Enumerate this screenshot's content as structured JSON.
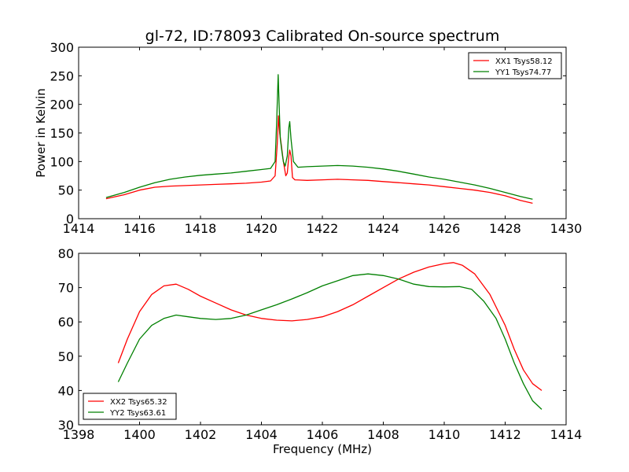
{
  "title": "gl-72, ID:78093 Calibrated On-source spectrum",
  "chart_data": [
    {
      "type": "line",
      "ylabel": "Power in Kelvin",
      "xlabel": "",
      "xlim": [
        1414,
        1430
      ],
      "ylim": [
        0,
        300
      ],
      "xticks": [
        1414,
        1416,
        1418,
        1420,
        1422,
        1424,
        1426,
        1428,
        1430
      ],
      "yticks": [
        0,
        50,
        100,
        150,
        200,
        250,
        300
      ],
      "legend_position": "top-right",
      "series": [
        {
          "name": "XX1 Tsys58.12",
          "color": "#ff0000",
          "x": [
            1414.9,
            1415.5,
            1416.0,
            1416.5,
            1417.0,
            1417.5,
            1418.0,
            1418.5,
            1419.0,
            1419.5,
            1420.0,
            1420.3,
            1420.45,
            1420.52,
            1420.56,
            1420.6,
            1420.65,
            1420.72,
            1420.8,
            1420.85,
            1420.9,
            1420.93,
            1420.97,
            1421.02,
            1421.1,
            1421.5,
            1422.0,
            1422.5,
            1423.0,
            1423.5,
            1424.0,
            1424.5,
            1425.0,
            1425.5,
            1426.0,
            1426.5,
            1427.0,
            1427.5,
            1428.0,
            1428.5,
            1428.9
          ],
          "y": [
            35,
            42,
            50,
            55,
            57,
            58,
            59,
            60,
            61,
            62,
            64,
            66,
            75,
            130,
            180,
            150,
            130,
            100,
            75,
            80,
            110,
            120,
            110,
            72,
            68,
            67,
            68,
            69,
            68,
            67,
            65,
            63,
            61,
            59,
            56,
            53,
            50,
            46,
            40,
            32,
            27
          ]
        },
        {
          "name": "YY1 Tsys74.77",
          "color": "#008000",
          "x": [
            1414.9,
            1415.5,
            1416.0,
            1416.5,
            1417.0,
            1417.5,
            1418.0,
            1418.5,
            1419.0,
            1419.5,
            1420.0,
            1420.3,
            1420.45,
            1420.5,
            1420.55,
            1420.58,
            1420.62,
            1420.67,
            1420.72,
            1420.78,
            1420.85,
            1420.9,
            1420.93,
            1420.97,
            1421.05,
            1421.2,
            1421.5,
            1422.0,
            1422.5,
            1423.0,
            1423.5,
            1424.0,
            1424.5,
            1425.0,
            1425.5,
            1426.0,
            1426.5,
            1427.0,
            1427.5,
            1428.0,
            1428.5,
            1428.9
          ],
          "y": [
            37,
            46,
            55,
            63,
            69,
            73,
            76,
            78,
            80,
            83,
            86,
            88,
            100,
            170,
            252,
            200,
            140,
            118,
            100,
            92,
            110,
            160,
            170,
            140,
            100,
            90,
            91,
            92,
            93,
            92,
            90,
            87,
            83,
            78,
            73,
            69,
            64,
            59,
            53,
            46,
            39,
            34
          ]
        }
      ]
    },
    {
      "type": "line",
      "ylabel": "",
      "xlabel": "Frequency (MHz)",
      "xlim": [
        1398,
        1414
      ],
      "ylim": [
        30,
        80
      ],
      "xticks": [
        1398,
        1400,
        1402,
        1404,
        1406,
        1408,
        1410,
        1412,
        1414
      ],
      "yticks": [
        30,
        40,
        50,
        60,
        70,
        80
      ],
      "legend_position": "bottom-left",
      "series": [
        {
          "name": "XX2 Tsys65.32",
          "color": "#ff0000",
          "x": [
            1399.3,
            1399.6,
            1400.0,
            1400.4,
            1400.8,
            1401.2,
            1401.6,
            1402.0,
            1402.5,
            1403.0,
            1403.5,
            1404.0,
            1404.5,
            1405.0,
            1405.5,
            1406.0,
            1406.5,
            1407.0,
            1407.5,
            1408.0,
            1408.5,
            1409.0,
            1409.5,
            1410.0,
            1410.3,
            1410.6,
            1411.0,
            1411.5,
            1412.0,
            1412.3,
            1412.6,
            1412.9,
            1413.2
          ],
          "y": [
            48,
            55,
            63,
            68,
            70.5,
            71,
            69.5,
            67.5,
            65.5,
            63.5,
            62,
            61,
            60.5,
            60.3,
            60.7,
            61.5,
            63,
            65,
            67.5,
            70,
            72.5,
            74.5,
            76,
            77,
            77.3,
            76.5,
            74,
            68,
            59,
            52,
            46,
            42,
            40
          ]
        },
        {
          "name": "YY2 Tsys63.61",
          "color": "#008000",
          "x": [
            1399.3,
            1399.6,
            1400.0,
            1400.4,
            1400.8,
            1401.2,
            1401.6,
            1402.0,
            1402.5,
            1403.0,
            1403.5,
            1404.0,
            1404.5,
            1405.0,
            1405.5,
            1406.0,
            1406.5,
            1407.0,
            1407.5,
            1408.0,
            1408.5,
            1409.0,
            1409.5,
            1410.0,
            1410.5,
            1410.9,
            1411.3,
            1411.7,
            1412.0,
            1412.3,
            1412.6,
            1412.9,
            1413.2
          ],
          "y": [
            42.5,
            48,
            55,
            59,
            61,
            62,
            61.5,
            61,
            60.7,
            61,
            62,
            63.5,
            65,
            66.7,
            68.5,
            70.5,
            72,
            73.5,
            74,
            73.5,
            72.5,
            71,
            70.3,
            70.2,
            70.3,
            69.5,
            66,
            61,
            55,
            48,
            42,
            37,
            34.5
          ]
        }
      ]
    }
  ]
}
